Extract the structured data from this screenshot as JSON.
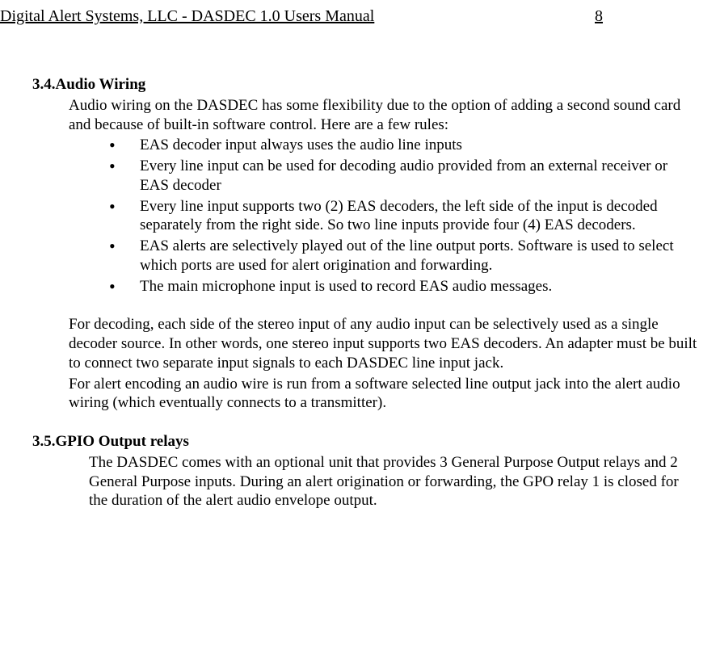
{
  "header": {
    "title": "Digital Alert Systems, LLC - DASDEC 1.0 Users Manual",
    "page": "8"
  },
  "section_audio": {
    "number": "3.4.",
    "title": "Audio Wiring",
    "intro": "Audio wiring on the DASDEC has some flexibility due to the option of adding a second sound card and because of built-in software control. Here are a few rules:",
    "bullets": [
      " EAS decoder input always uses the audio line inputs",
      " Every line input can be used for decoding audio provided from an external receiver or EAS decoder",
      " Every line input supports two (2) EAS decoders, the left side of the input is decoded separately from the right side. So two line inputs provide four (4) EAS decoders.",
      "EAS alerts are selectively played out of the line output ports. Software is used to select which ports are used for alert origination and forwarding.",
      "The main microphone input is used to record EAS audio messages."
    ],
    "para2": "For decoding, each side of the stereo input of any audio input can be selectively used as a single decoder source. In other words, one stereo input supports two EAS decoders. An adapter must be built to connect two separate input signals to each DASDEC line input jack.",
    "para3": " For alert encoding an audio wire is run from a software selected line output jack into the alert audio wiring (which eventually connects to a transmitter)."
  },
  "section_gpio": {
    "number": "3.5.",
    "title": "GPIO Output relays",
    "para": "The  DASDEC comes with an optional unit that provides 3 General Purpose Output relays and 2 General Purpose inputs. During an alert origination or forwarding, the GPO relay 1 is closed for the duration of the alert audio envelope output."
  }
}
